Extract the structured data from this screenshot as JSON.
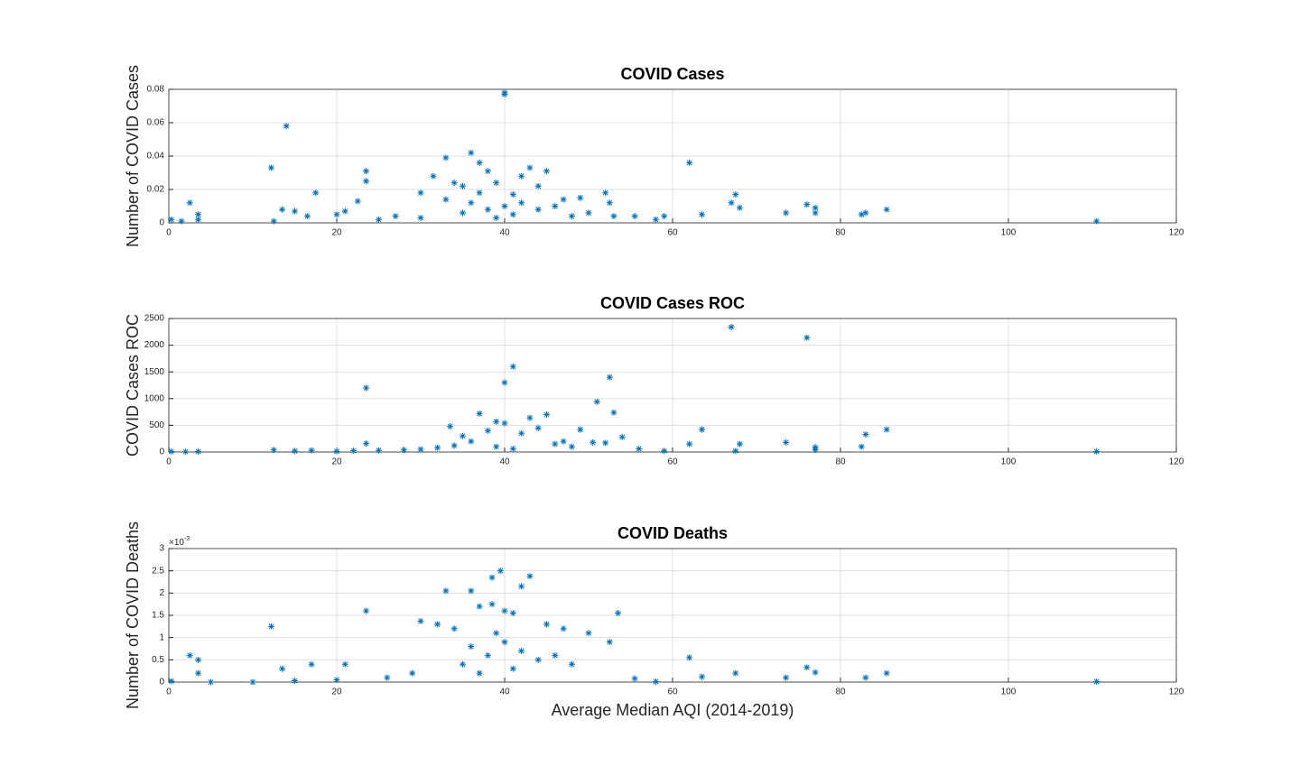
{
  "chart_data": [
    {
      "type": "scatter",
      "title": "COVID Cases",
      "y_label": "Number of COVID Cases",
      "color": "#0072BD",
      "grid": true,
      "xlim": [
        0,
        120
      ],
      "xticks": [
        0,
        20,
        40,
        60,
        80,
        100,
        120
      ],
      "ylim": [
        0,
        0.08
      ],
      "yticks": [
        0,
        0.02,
        0.04,
        0.06,
        0.08
      ],
      "x": [
        12.2,
        14,
        40,
        40,
        36,
        33,
        62,
        17.5,
        23.5,
        23.5,
        2.5,
        67.5,
        67,
        68,
        63.5,
        73.5,
        76,
        77,
        77,
        83,
        82.5,
        85.5,
        110.5,
        55.5,
        58,
        59,
        0.3,
        3.5,
        3.5,
        1.5,
        12.5,
        13.5,
        15,
        16.5,
        20,
        21,
        22.5,
        25,
        27,
        30,
        31.5,
        34,
        35,
        37,
        38,
        39,
        41,
        42,
        43,
        45,
        44,
        47,
        49,
        52,
        52.5,
        53,
        50,
        36,
        38,
        40,
        39,
        41,
        35,
        33,
        37,
        42,
        44,
        46,
        48,
        30
      ],
      "values": [
        0.033,
        0.058,
        0.077,
        0.078,
        0.042,
        0.039,
        0.036,
        0.018,
        0.031,
        0.025,
        0.012,
        0.017,
        0.012,
        0.009,
        0.005,
        0.006,
        0.011,
        0.006,
        0.009,
        0.006,
        0.005,
        0.008,
        0.001,
        0.004,
        0.002,
        0.004,
        0.002,
        0.005,
        0.002,
        0.001,
        0.001,
        0.008,
        0.007,
        0.004,
        0.005,
        0.007,
        0.013,
        0.002,
        0.004,
        0.018,
        0.028,
        0.024,
        0.022,
        0.036,
        0.031,
        0.024,
        0.017,
        0.028,
        0.033,
        0.031,
        0.022,
        0.014,
        0.015,
        0.018,
        0.012,
        0.004,
        0.006,
        0.012,
        0.008,
        0.01,
        0.003,
        0.005,
        0.006,
        0.014,
        0.018,
        0.012,
        0.008,
        0.01,
        0.004,
        0.003
      ]
    },
    {
      "type": "scatter",
      "title": "COVID Cases ROC",
      "y_label": "COVID Cases ROC",
      "color": "#0072BD",
      "grid": true,
      "xlim": [
        0,
        120
      ],
      "xticks": [
        0,
        20,
        40,
        60,
        80,
        100,
        120
      ],
      "ylim": [
        0,
        2500
      ],
      "yticks": [
        0,
        500,
        1000,
        1500,
        2000,
        2500
      ],
      "x": [
        67,
        76,
        41,
        40,
        52.5,
        23.5,
        51,
        53,
        33.5,
        37,
        39,
        40,
        43,
        45,
        49,
        63.5,
        85.5,
        83,
        73.5,
        62,
        68,
        77,
        82.5,
        110.5,
        52,
        54,
        50.5,
        47,
        23.5,
        3.5,
        0.3,
        2,
        12.5,
        15,
        17,
        20,
        22,
        25,
        28,
        30,
        32,
        34,
        35,
        36,
        38,
        42,
        44,
        46,
        48,
        56,
        59,
        67.5,
        77,
        39,
        41
      ],
      "values": [
        2340,
        2140,
        1600,
        1300,
        1400,
        1200,
        940,
        740,
        480,
        720,
        570,
        540,
        640,
        700,
        420,
        420,
        420,
        330,
        180,
        150,
        150,
        90,
        100,
        10,
        170,
        280,
        180,
        200,
        160,
        10,
        10,
        5,
        40,
        20,
        30,
        15,
        25,
        30,
        40,
        50,
        80,
        120,
        300,
        200,
        400,
        350,
        450,
        150,
        100,
        60,
        20,
        20,
        40,
        100,
        60
      ]
    },
    {
      "type": "scatter",
      "title": "COVID Deaths",
      "y_label": "Number of COVID Deaths",
      "x_label": "Average Median AQI (2014-2019)",
      "color": "#0072BD",
      "grid": true,
      "y_exponent_base": "×10",
      "y_exponent": "-3",
      "xlim": [
        0,
        120
      ],
      "xticks": [
        0,
        20,
        40,
        60,
        80,
        100,
        120
      ],
      "ylim": [
        0,
        0.003
      ],
      "yticks": [
        0,
        {
          "value": 0.0005,
          "label": "0.5"
        },
        {
          "value": 0.001,
          "label": "1"
        },
        {
          "value": 0.0015,
          "label": "1.5"
        },
        {
          "value": 0.002,
          "label": "2"
        },
        {
          "value": 0.0025,
          "label": "2.5"
        },
        {
          "value": 0.003,
          "label": "3"
        }
      ],
      "x": [
        12.2,
        23.5,
        33,
        36,
        38.5,
        39.5,
        42,
        43,
        30,
        32,
        34,
        37,
        38.5,
        40,
        41,
        45,
        47,
        50,
        53.5,
        52.5,
        2.5,
        3.5,
        3.5,
        13.5,
        17,
        21,
        62,
        76,
        77,
        67.5,
        85.5,
        83,
        63.5,
        73.5,
        110.5,
        58,
        55.5,
        0.3,
        36,
        38,
        40,
        42,
        44,
        35,
        39,
        41,
        37,
        46,
        48,
        29,
        26,
        20,
        15,
        10,
        5
      ],
      "values": [
        0.00125,
        0.0016,
        0.00205,
        0.00205,
        0.00235,
        0.0025,
        0.00215,
        0.00238,
        0.00137,
        0.0013,
        0.0012,
        0.0017,
        0.00175,
        0.0016,
        0.00155,
        0.0013,
        0.0012,
        0.0011,
        0.00155,
        0.0009,
        0.0006,
        0.0005,
        0.0002,
        0.0003,
        0.0004,
        0.0004,
        0.00055,
        0.00033,
        0.00022,
        0.0002,
        0.0002,
        0.0001,
        0.00012,
        0.0001,
        1e-05,
        1e-05,
        8e-05,
        2e-05,
        0.0008,
        0.0006,
        0.0009,
        0.0007,
        0.0005,
        0.0004,
        0.0011,
        0.0003,
        0.0002,
        0.0006,
        0.0004,
        0.0002,
        0.0001,
        5e-05,
        3e-05,
        0,
        0
      ]
    }
  ]
}
